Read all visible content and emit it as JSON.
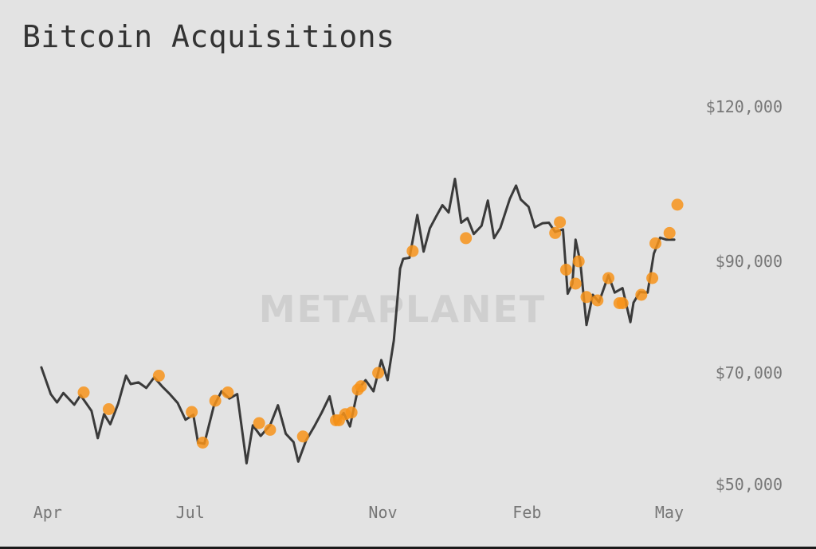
{
  "colors": {
    "background": "#e3e3e3",
    "line": "#3a3a3a",
    "marker": "#f7931a",
    "text": "#333333",
    "axis_text": "#777777",
    "watermark": "#cfcfcf"
  },
  "watermark": "METAPLANET",
  "chart_data": {
    "type": "line",
    "title": "Bitcoin Acquisitions",
    "xlabel": "",
    "ylabel": "",
    "y_axis_position": "right",
    "grid": false,
    "legend": "none",
    "x_domain": [
      "2024-03-25",
      "2025-05-08"
    ],
    "ylim": [
      50000,
      120000
    ],
    "x_ticks": [
      {
        "label": "Apr",
        "date": "2024-04-01"
      },
      {
        "label": "Jul",
        "date": "2024-07-01"
      },
      {
        "label": "Nov",
        "date": "2024-11-01"
      },
      {
        "label": "Feb",
        "date": "2025-02-01"
      },
      {
        "label": "May",
        "date": "2025-05-01"
      }
    ],
    "y_ticks": [
      {
        "label": "$120,000",
        "value": 120000
      },
      {
        "label": "$90,000",
        "value": 90000
      },
      {
        "label": "$70,000",
        "value": 70000
      },
      {
        "label": "$50,000",
        "value": 50000
      }
    ],
    "series": [
      {
        "kind": "price-line",
        "points": [
          [
            "2024-03-27",
            71000
          ],
          [
            "2024-04-02",
            66200
          ],
          [
            "2024-04-06",
            64700
          ],
          [
            "2024-04-10",
            66400
          ],
          [
            "2024-04-17",
            64300
          ],
          [
            "2024-04-21",
            66000
          ],
          [
            "2024-04-28",
            63200
          ],
          [
            "2024-05-02",
            58300
          ],
          [
            "2024-05-06",
            62600
          ],
          [
            "2024-05-10",
            60800
          ],
          [
            "2024-05-15",
            64500
          ],
          [
            "2024-05-20",
            69500
          ],
          [
            "2024-05-23",
            68000
          ],
          [
            "2024-05-28",
            68300
          ],
          [
            "2024-06-02",
            67300
          ],
          [
            "2024-06-07",
            69200
          ],
          [
            "2024-06-12",
            67600
          ],
          [
            "2024-06-17",
            66200
          ],
          [
            "2024-06-22",
            64600
          ],
          [
            "2024-06-27",
            61600
          ],
          [
            "2024-07-02",
            62500
          ],
          [
            "2024-07-05",
            57500
          ],
          [
            "2024-07-09",
            57300
          ],
          [
            "2024-07-15",
            64000
          ],
          [
            "2024-07-20",
            66700
          ],
          [
            "2024-07-25",
            65400
          ],
          [
            "2024-07-30",
            66200
          ],
          [
            "2024-08-05",
            53800
          ],
          [
            "2024-08-09",
            60600
          ],
          [
            "2024-08-14",
            58700
          ],
          [
            "2024-08-20",
            60600
          ],
          [
            "2024-08-25",
            64200
          ],
          [
            "2024-08-30",
            59100
          ],
          [
            "2024-09-04",
            57600
          ],
          [
            "2024-09-07",
            54100
          ],
          [
            "2024-09-12",
            57900
          ],
          [
            "2024-09-17",
            60300
          ],
          [
            "2024-09-22",
            62900
          ],
          [
            "2024-09-27",
            65800
          ],
          [
            "2024-10-01",
            60800
          ],
          [
            "2024-10-06",
            62800
          ],
          [
            "2024-10-10",
            60400
          ],
          [
            "2024-10-15",
            67000
          ],
          [
            "2024-10-20",
            68700
          ],
          [
            "2024-10-25",
            66700
          ],
          [
            "2024-10-30",
            72300
          ],
          [
            "2024-11-03",
            68700
          ],
          [
            "2024-11-07",
            75800
          ],
          [
            "2024-11-11",
            88700
          ],
          [
            "2024-11-13",
            90500
          ],
          [
            "2024-11-17",
            90700
          ],
          [
            "2024-11-22",
            99000
          ],
          [
            "2024-11-26",
            91900
          ],
          [
            "2024-11-30",
            96400
          ],
          [
            "2024-12-04",
            98700
          ],
          [
            "2024-12-08",
            100900
          ],
          [
            "2024-12-12",
            99500
          ],
          [
            "2024-12-16",
            106000
          ],
          [
            "2024-12-20",
            97500
          ],
          [
            "2024-12-24",
            98400
          ],
          [
            "2024-12-28",
            95300
          ],
          [
            "2025-01-02",
            96900
          ],
          [
            "2025-01-06",
            101800
          ],
          [
            "2025-01-10",
            94500
          ],
          [
            "2025-01-14",
            96500
          ],
          [
            "2025-01-20",
            102100
          ],
          [
            "2025-01-24",
            104700
          ],
          [
            "2025-01-27",
            102000
          ],
          [
            "2025-02-01",
            100600
          ],
          [
            "2025-02-05",
            96600
          ],
          [
            "2025-02-10",
            97400
          ],
          [
            "2025-02-14",
            97500
          ],
          [
            "2025-02-18",
            95700
          ],
          [
            "2025-02-23",
            96200
          ],
          [
            "2025-02-26",
            84200
          ],
          [
            "2025-03-01",
            86000
          ],
          [
            "2025-03-03",
            94200
          ],
          [
            "2025-03-06",
            89900
          ],
          [
            "2025-03-10",
            78600
          ],
          [
            "2025-03-14",
            84000
          ],
          [
            "2025-03-18",
            82700
          ],
          [
            "2025-03-24",
            87500
          ],
          [
            "2025-03-28",
            84400
          ],
          [
            "2025-04-02",
            85200
          ],
          [
            "2025-04-07",
            79100
          ],
          [
            "2025-04-09",
            82600
          ],
          [
            "2025-04-13",
            84500
          ],
          [
            "2025-04-18",
            84400
          ],
          [
            "2025-04-22",
            91500
          ],
          [
            "2025-04-26",
            94600
          ],
          [
            "2025-04-30",
            94200
          ],
          [
            "2025-05-05",
            94200
          ]
        ]
      },
      {
        "kind": "acquisition-markers",
        "points": [
          [
            "2024-04-23",
            66500
          ],
          [
            "2024-05-09",
            63500
          ],
          [
            "2024-06-10",
            69500
          ],
          [
            "2024-07-01",
            63000
          ],
          [
            "2024-07-08",
            57500
          ],
          [
            "2024-07-16",
            65000
          ],
          [
            "2024-07-24",
            66500
          ],
          [
            "2024-08-13",
            61000
          ],
          [
            "2024-08-20",
            59800
          ],
          [
            "2024-09-10",
            58600
          ],
          [
            "2024-10-01",
            61500
          ],
          [
            "2024-10-03",
            61500
          ],
          [
            "2024-10-07",
            62600
          ],
          [
            "2024-10-11",
            62900
          ],
          [
            "2024-10-15",
            67000
          ],
          [
            "2024-10-17",
            67600
          ],
          [
            "2024-10-28",
            70000
          ],
          [
            "2024-11-19",
            92000
          ],
          [
            "2024-12-23",
            94500
          ],
          [
            "2025-02-18",
            95500
          ],
          [
            "2025-02-21",
            97600
          ],
          [
            "2025-02-25",
            88500
          ],
          [
            "2025-03-03",
            86000
          ],
          [
            "2025-03-05",
            90000
          ],
          [
            "2025-03-10",
            83600
          ],
          [
            "2025-03-17",
            83000
          ],
          [
            "2025-03-24",
            87000
          ],
          [
            "2025-03-31",
            82500
          ],
          [
            "2025-04-02",
            82500
          ],
          [
            "2025-04-14",
            84000
          ],
          [
            "2025-04-21",
            87000
          ],
          [
            "2025-04-23",
            93500
          ],
          [
            "2025-05-02",
            95500
          ],
          [
            "2025-05-07",
            101000
          ]
        ]
      }
    ]
  }
}
